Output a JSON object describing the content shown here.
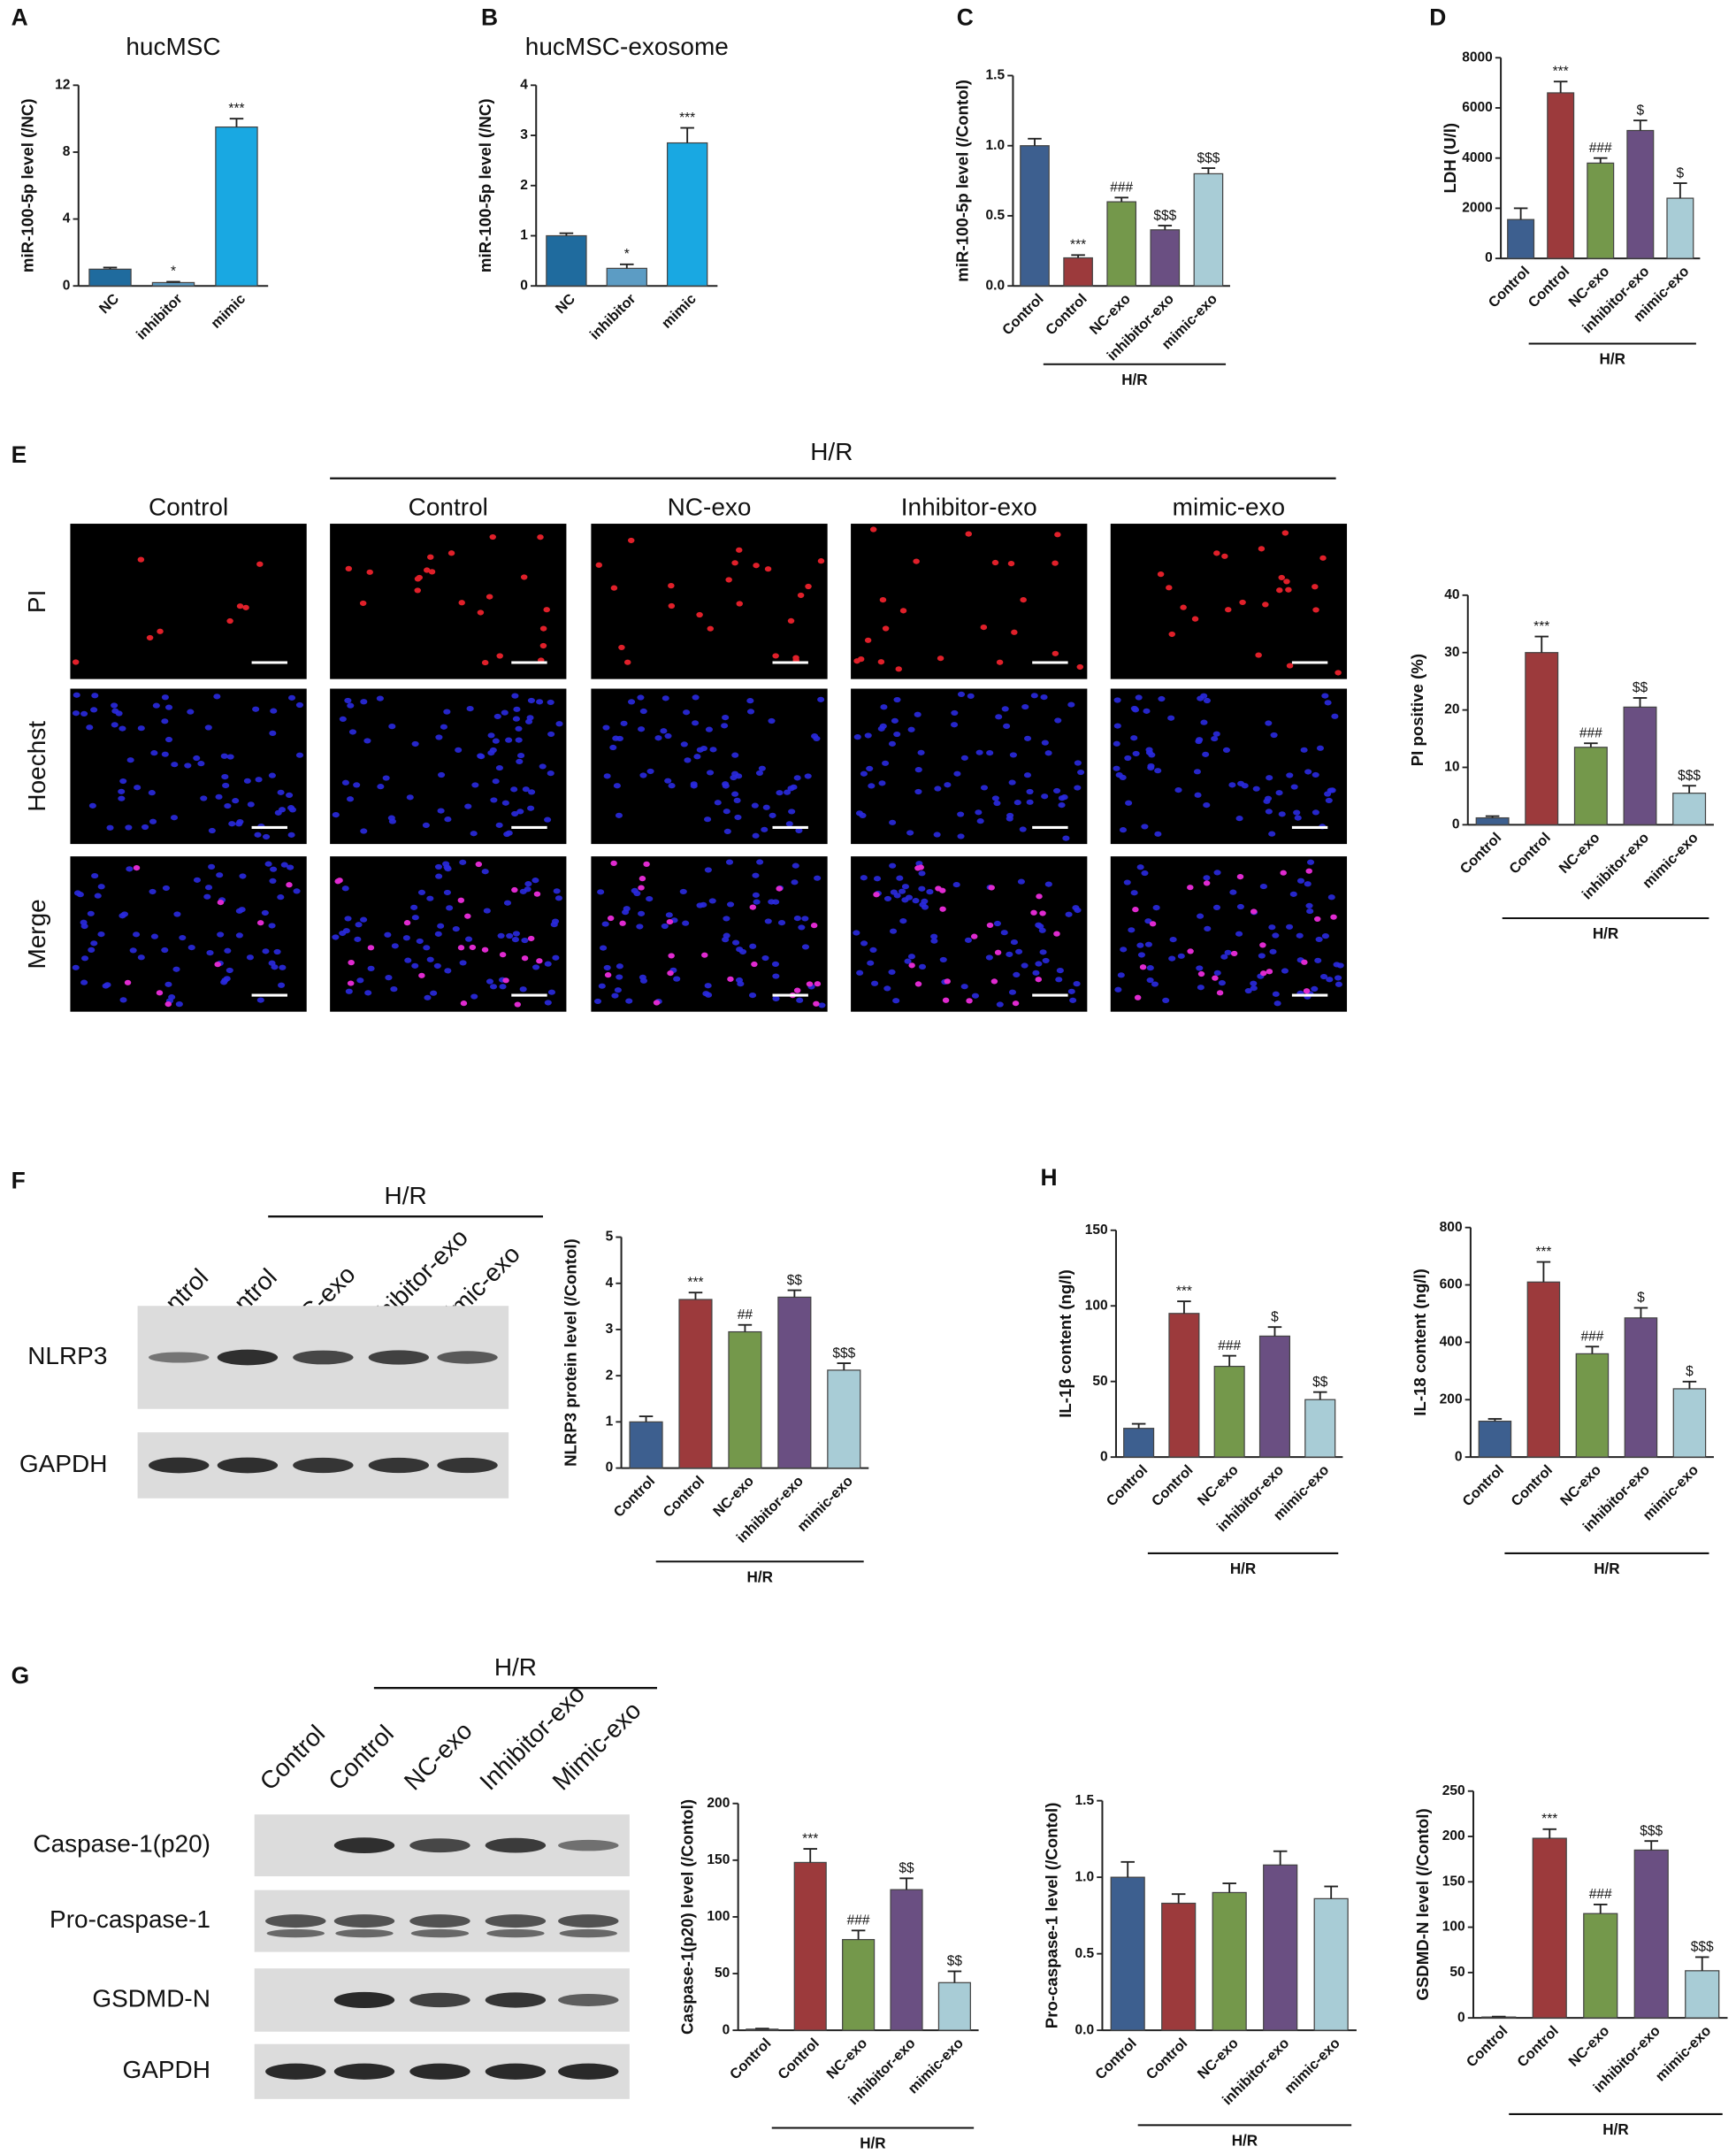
{
  "chart_data": [
    {
      "type": "bar",
      "panel": "A",
      "title": "hucMSC",
      "ylabel": "miR-100-5p level (/NC)",
      "categories": [
        "NC",
        "inhibitor",
        "mimic"
      ],
      "values": [
        1.0,
        0.2,
        9.5
      ],
      "errors": [
        0.1,
        0.05,
        0.5
      ],
      "annotations": [
        null,
        "*",
        "***"
      ],
      "colors": [
        "#1f6b9e",
        "#5c9cc4",
        "#19a8e2"
      ],
      "ylim": [
        0,
        12
      ],
      "yticks": [
        0,
        4,
        8,
        12
      ]
    },
    {
      "type": "bar",
      "panel": "B",
      "title": "hucMSC-exosome",
      "ylabel": "miR-100-5p level (/NC)",
      "categories": [
        "NC",
        "inhibitor",
        "mimic"
      ],
      "values": [
        1.0,
        0.35,
        2.85
      ],
      "errors": [
        0.05,
        0.08,
        0.3
      ],
      "annotations": [
        null,
        "*",
        "***"
      ],
      "colors": [
        "#1f6b9e",
        "#5c9cc4",
        "#19a8e2"
      ],
      "ylim": [
        0,
        4
      ],
      "yticks": [
        0,
        1,
        2,
        3,
        4
      ]
    },
    {
      "type": "bar",
      "panel": "C",
      "ylabel": "miR-100-5p level (/Contol)",
      "categories": [
        "Control",
        "Control",
        "NC-exo",
        "inhibitor-exo",
        "mimic-exo"
      ],
      "group_label": "H/R",
      "values": [
        1.0,
        0.2,
        0.6,
        0.4,
        0.8
      ],
      "errors": [
        0.05,
        0.02,
        0.03,
        0.03,
        0.04
      ],
      "annotations": [
        null,
        "***",
        "###",
        "$$$",
        "$$$"
      ],
      "colors": [
        "#3d5f8f",
        "#9c3a3c",
        "#74984b",
        "#6a4f82",
        "#a8ccd6"
      ],
      "ylim": [
        0,
        1.5
      ],
      "yticks": [
        {
          "value": 0,
          "label": "0.0"
        },
        0.5,
        {
          "value": 1,
          "label": "1.0"
        },
        1.5
      ]
    },
    {
      "type": "bar",
      "panel": "D",
      "ylabel": "LDH (U/l)",
      "categories": [
        "Control",
        "Control",
        "NC-exo",
        "inhibitor-exo",
        "mimic-exo"
      ],
      "group_label": "H/R",
      "values": [
        1550,
        6600,
        3800,
        5100,
        2400
      ],
      "errors": [
        450,
        450,
        200,
        400,
        600
      ],
      "annotations": [
        null,
        "***",
        "###",
        "$",
        "$"
      ],
      "colors": [
        "#3d5f8f",
        "#9c3a3c",
        "#74984b",
        "#6a4f82",
        "#a8ccd6"
      ],
      "ylim": [
        0,
        8000
      ],
      "yticks": [
        0,
        2000,
        4000,
        6000,
        8000
      ]
    },
    {
      "type": "bar",
      "ylabel": "PI positive (%)",
      "categories": [
        "Control",
        "Control",
        "NC-exo",
        "inhibitor-exo",
        "mimic-exo"
      ],
      "group_label": "H/R",
      "values": [
        1.2,
        30,
        13.5,
        20.5,
        5.5
      ],
      "errors": [
        0.3,
        2.8,
        0.7,
        1.6,
        1.3
      ],
      "annotations": [
        null,
        "***",
        "###",
        "$$",
        "$$$"
      ],
      "colors": [
        "#3d5f8f",
        "#9c3a3c",
        "#74984b",
        "#6a4f82",
        "#a8ccd6"
      ],
      "ylim": [
        0,
        40
      ],
      "yticks": [
        0,
        10,
        20,
        30,
        40
      ]
    },
    {
      "type": "bar",
      "ylabel": "NLRP3 protein level (/Contol)",
      "categories": [
        "Control",
        "Control",
        "NC-exo",
        "inhibitor-exo",
        "mimic-exo"
      ],
      "group_label": "H/R",
      "values": [
        1.0,
        3.65,
        2.95,
        3.7,
        2.12
      ],
      "errors": [
        0.12,
        0.15,
        0.15,
        0.15,
        0.15
      ],
      "annotations": [
        null,
        "***",
        "##",
        "$$",
        "$$$"
      ],
      "colors": [
        "#3d5f8f",
        "#9c3a3c",
        "#74984b",
        "#6a4f82",
        "#a8ccd6"
      ],
      "ylim": [
        0,
        5
      ],
      "yticks": [
        0,
        1,
        2,
        3,
        4,
        5
      ]
    },
    {
      "type": "bar",
      "panel": "H",
      "ylabel": "IL-1β content  (ng/l)",
      "categories": [
        "Control",
        "Control",
        "NC-exo",
        "inhibitor-exo",
        "mimic-exo"
      ],
      "group_label": "H/R",
      "values": [
        19,
        95,
        60,
        80,
        38
      ],
      "errors": [
        3,
        8,
        7,
        6,
        5
      ],
      "annotations": [
        null,
        "***",
        "###",
        "$",
        "$$"
      ],
      "colors": [
        "#3d5f8f",
        "#9c3a3c",
        "#74984b",
        "#6a4f82",
        "#a8ccd6"
      ],
      "ylim": [
        0,
        150
      ],
      "yticks": [
        0,
        50,
        100,
        150
      ]
    },
    {
      "type": "bar",
      "ylabel": "IL-18 content  (ng/l)",
      "categories": [
        "Control",
        "Control",
        "NC-exo",
        "inhibitor-exo",
        "mimic-exo"
      ],
      "group_label": "H/R",
      "values": [
        125,
        610,
        360,
        485,
        238
      ],
      "errors": [
        8,
        70,
        25,
        35,
        25
      ],
      "annotations": [
        null,
        "***",
        "###",
        "$",
        "$"
      ],
      "colors": [
        "#3d5f8f",
        "#9c3a3c",
        "#74984b",
        "#6a4f82",
        "#a8ccd6"
      ],
      "ylim": [
        0,
        800
      ],
      "yticks": [
        0,
        200,
        400,
        600,
        800
      ]
    },
    {
      "type": "bar",
      "ylabel": "Caspase-1(p20) level (/Contol)",
      "categories": [
        "Control",
        "Control",
        "NC-exo",
        "inhibitor-exo",
        "mimic-exo"
      ],
      "group_label": "H/R",
      "values": [
        1,
        148,
        80,
        124,
        42
      ],
      "errors": [
        0.5,
        12,
        8,
        10,
        10
      ],
      "annotations": [
        null,
        "***",
        "###",
        "$$",
        "$$"
      ],
      "colors": [
        "#3d5f8f",
        "#9c3a3c",
        "#74984b",
        "#6a4f82",
        "#a8ccd6"
      ],
      "ylim": [
        0,
        200
      ],
      "yticks": [
        0,
        50,
        100,
        150,
        200
      ]
    },
    {
      "type": "bar",
      "ylabel": "Pro-caspase-1 level (/Contol)",
      "categories": [
        "Control",
        "Control",
        "NC-exo",
        "inhibitor-exo",
        "mimic-exo"
      ],
      "group_label": "H/R",
      "values": [
        1.0,
        0.83,
        0.9,
        1.08,
        0.86
      ],
      "errors": [
        0.1,
        0.06,
        0.06,
        0.09,
        0.08
      ],
      "annotations": [
        null,
        null,
        null,
        null,
        null
      ],
      "colors": [
        "#3d5f8f",
        "#9c3a3c",
        "#74984b",
        "#6a4f82",
        "#a8ccd6"
      ],
      "ylim": [
        0,
        1.5
      ],
      "yticks": [
        {
          "value": 0,
          "label": "0.0"
        },
        0.5,
        {
          "value": 1,
          "label": "1.0"
        },
        1.5
      ]
    },
    {
      "type": "bar",
      "ylabel": "GSDMD-N level (/Contol)",
      "categories": [
        "Control",
        "Control",
        "NC-exo",
        "inhibitor-exo",
        "mimic-exo"
      ],
      "group_label": "H/R",
      "values": [
        1,
        198,
        115,
        185,
        52
      ],
      "errors": [
        0.5,
        10,
        10,
        10,
        15
      ],
      "annotations": [
        null,
        "***",
        "###",
        "$$$",
        "$$$"
      ],
      "colors": [
        "#3d5f8f",
        "#9c3a3c",
        "#74984b",
        "#6a4f82",
        "#a8ccd6"
      ],
      "ylim": [
        0,
        250
      ],
      "yticks": [
        0,
        50,
        100,
        150,
        200,
        250
      ]
    }
  ],
  "microscopy": {
    "panel": "E",
    "group_label": "H/R",
    "columns": [
      "Control",
      "Control",
      "NC-exo",
      "Inhibitor-exo",
      "mimic-exo"
    ],
    "rows": [
      "PI",
      "Hoechst",
      "Merge"
    ]
  },
  "blot_f": {
    "panel": "F",
    "group_label": "H/R",
    "lanes": [
      "Control",
      "Control",
      "NC-exo",
      "Inhibitor-exo",
      "Mimic-exo"
    ],
    "proteins": [
      "NLRP3",
      "GAPDH"
    ]
  },
  "blot_g": {
    "panel": "G",
    "group_label": "H/R",
    "lanes": [
      "Control",
      "Control",
      "NC-exo",
      "Inhibitor-exo",
      "Mimic-exo"
    ],
    "proteins": [
      "Caspase-1(p20)",
      "Pro-caspase-1",
      "GSDMD-N",
      "GAPDH"
    ]
  }
}
